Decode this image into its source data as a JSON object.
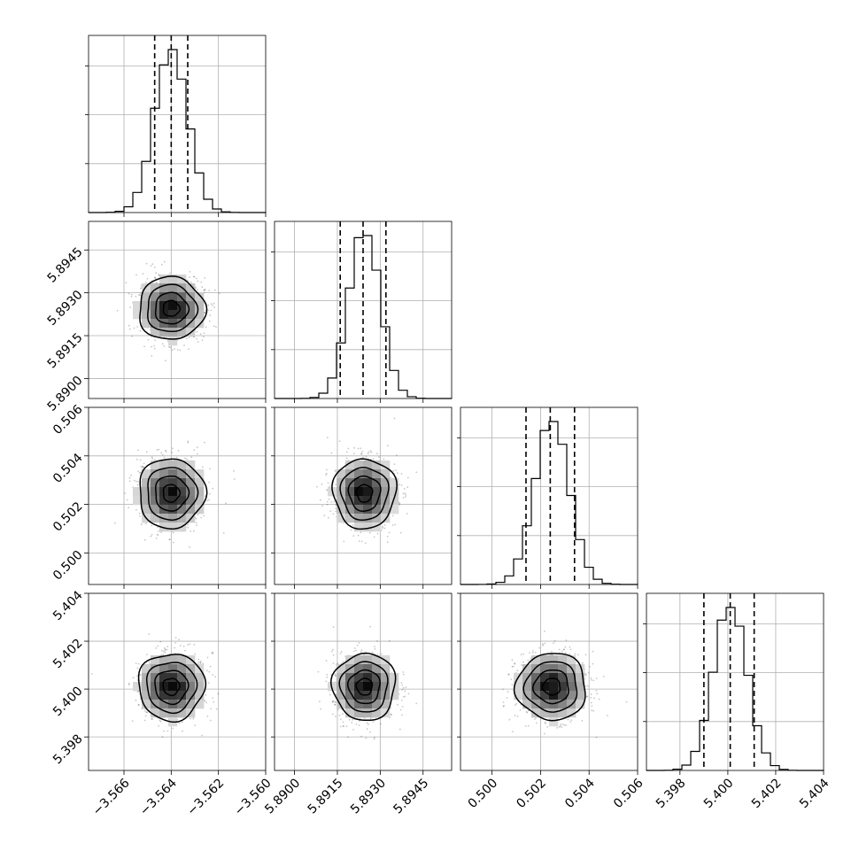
{
  "chart_data": {
    "type": "corner",
    "title": "",
    "grid": true,
    "parameters": [
      {
        "name": "",
        "range": [
          -3.5675,
          -3.56
        ],
        "ticks": [
          -3.566,
          -3.564,
          -3.562,
          -3.56
        ],
        "tick_labels": [
          "−3.566",
          "−3.564",
          "−3.562",
          "−3.560"
        ],
        "mean": -3.564,
        "std": 0.0007,
        "quantiles": [
          -3.5647,
          -3.564,
          -3.5633
        ]
      },
      {
        "name": "",
        "range": [
          5.8893,
          5.8955
        ],
        "ticks": [
          5.89,
          5.8915,
          5.893,
          5.8945
        ],
        "tick_labels": [
          "5.8900",
          "5.8915",
          "5.8930",
          "5.8945"
        ],
        "mean": 5.89245,
        "std": 0.00055,
        "quantiles": [
          5.8916,
          5.8924,
          5.8932
        ]
      },
      {
        "name": "",
        "range": [
          0.4987,
          0.506
        ],
        "ticks": [
          0.5,
          0.502,
          0.504,
          0.506
        ],
        "tick_labels": [
          "0.500",
          "0.502",
          "0.504",
          "0.506"
        ],
        "mean": 0.50246,
        "std": 0.00072,
        "quantiles": [
          0.5014,
          0.5024,
          0.5034
        ]
      },
      {
        "name": "",
        "range": [
          5.3966,
          5.404
        ],
        "ticks": [
          5.398,
          5.4,
          5.402,
          5.404
        ],
        "tick_labels": [
          "5.398",
          "5.400",
          "5.402",
          "5.404"
        ],
        "mean": 5.4001,
        "std": 0.0007,
        "quantiles": [
          5.399,
          5.4001,
          5.4011
        ]
      }
    ],
    "histogram_bins": 20,
    "contour_levels_sigma": [
      0.5,
      1.0,
      1.5,
      2.0
    ],
    "colors": {
      "line": "#000000",
      "scatter": "#000000",
      "grid": "#b0b0b0"
    }
  }
}
